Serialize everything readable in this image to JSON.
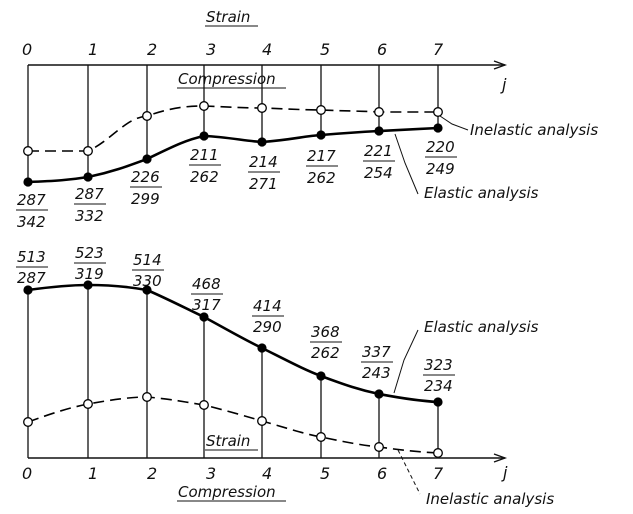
{
  "top": {
    "strain_label": "Strain",
    "compression_label": "Compression",
    "axis_label": "j",
    "ticks": [
      "0",
      "1",
      "2",
      "3",
      "4",
      "5",
      "6",
      "7"
    ],
    "elastic_label": "Elastic analysis",
    "inelastic_label": "Inelastic analysis",
    "elastic_fractions": [
      {
        "num": "287",
        "den": "342"
      },
      {
        "num": "287",
        "den": "332"
      },
      {
        "num": "226",
        "den": "299"
      },
      {
        "num": "211",
        "den": "262"
      },
      {
        "num": "214",
        "den": "271"
      },
      {
        "num": "217",
        "den": "262"
      },
      {
        "num": "221",
        "den": "254"
      },
      {
        "num": "220",
        "den": "249"
      }
    ]
  },
  "bottom": {
    "strain_label": "Strain",
    "compression_label": "Compression",
    "axis_label": "j",
    "ticks": [
      "0",
      "1",
      "2",
      "3",
      "4",
      "5",
      "6",
      "7"
    ],
    "elastic_label": "Elastic analysis",
    "inelastic_label": "Inelastic analysis",
    "elastic_fractions": [
      {
        "num": "513",
        "den": "287"
      },
      {
        "num": "523",
        "den": "319"
      },
      {
        "num": "514",
        "den": "330"
      },
      {
        "num": "468",
        "den": "317"
      },
      {
        "num": "414",
        "den": "290"
      },
      {
        "num": "368",
        "den": "262"
      },
      {
        "num": "337",
        "den": "243"
      },
      {
        "num": "323",
        "den": "234"
      }
    ]
  }
}
